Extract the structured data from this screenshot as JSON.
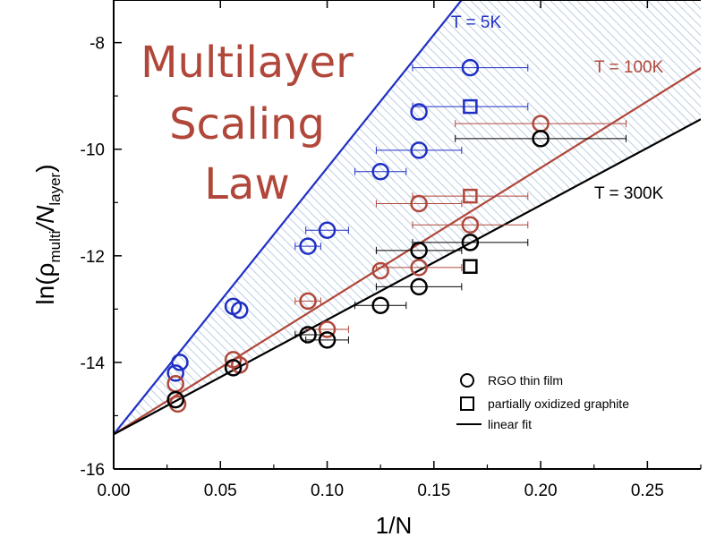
{
  "chart_data": {
    "type": "scatter",
    "title_lines": [
      "Multilayer",
      "Scaling",
      "Law"
    ],
    "xlabel": "1/N",
    "ylabel": {
      "prefix": "ln(ρ",
      "sub1": "multi",
      "mid": "/N",
      "sub2": "layer",
      "suffix": ")"
    },
    "xlim": [
      0.0,
      0.275
    ],
    "ylim": [
      -16,
      -7.2
    ],
    "xticks": [
      0.0,
      0.05,
      0.1,
      0.15,
      0.2,
      0.25
    ],
    "xtick_labels": [
      "0.00",
      "0.05",
      "0.10",
      "0.15",
      "0.20",
      "0.25"
    ],
    "yticks": [
      -16,
      -14,
      -12,
      -10,
      -8
    ],
    "ytick_labels": [
      "-16",
      "-14",
      "-12",
      "-10",
      "-8"
    ],
    "colors": {
      "5K": "#1f2fc4",
      "100K": "#b0473a",
      "300K": "#000000",
      "fill": "#a9c4dd"
    },
    "series": [
      {
        "name": "T = 5K",
        "color_key": "5K",
        "fit": {
          "intercept": -15.35,
          "slope": 50.0
        },
        "circles": [
          {
            "x": 0.029,
            "y": -14.2,
            "xerr": 0.0
          },
          {
            "x": 0.031,
            "y": -14.0,
            "xerr": 0.0
          },
          {
            "x": 0.056,
            "y": -12.95,
            "xerr": 0.0
          },
          {
            "x": 0.059,
            "y": -13.02,
            "xerr": 0.0
          },
          {
            "x": 0.091,
            "y": -11.82,
            "xerr": 0.006
          },
          {
            "x": 0.1,
            "y": -11.52,
            "xerr": 0.01
          },
          {
            "x": 0.125,
            "y": -10.42,
            "xerr": 0.012
          },
          {
            "x": 0.143,
            "y": -10.02,
            "xerr": 0.02
          },
          {
            "x": 0.143,
            "y": -9.3,
            "xerr": 0.0
          },
          {
            "x": 0.167,
            "y": -8.47,
            "xerr": 0.027
          }
        ],
        "squares": [
          {
            "x": 0.167,
            "y": -9.2,
            "xerr": 0.027
          }
        ]
      },
      {
        "name": "T = 100K",
        "color_key": "100K",
        "fit": {
          "intercept": -15.35,
          "slope": 25.0
        },
        "circles": [
          {
            "x": 0.029,
            "y": -14.4,
            "xerr": 0.0
          },
          {
            "x": 0.03,
            "y": -14.78,
            "xerr": 0.0
          },
          {
            "x": 0.056,
            "y": -13.95,
            "xerr": 0.0
          },
          {
            "x": 0.059,
            "y": -14.05,
            "xerr": 0.0
          },
          {
            "x": 0.091,
            "y": -12.85,
            "xerr": 0.006
          },
          {
            "x": 0.1,
            "y": -13.38,
            "xerr": 0.01
          },
          {
            "x": 0.125,
            "y": -12.28,
            "xerr": 0.0
          },
          {
            "x": 0.143,
            "y": -12.22,
            "xerr": 0.02
          },
          {
            "x": 0.143,
            "y": -11.02,
            "xerr": 0.02
          },
          {
            "x": 0.167,
            "y": -11.42,
            "xerr": 0.027
          },
          {
            "x": 0.2,
            "y": -9.52,
            "xerr": 0.04
          }
        ],
        "squares": [
          {
            "x": 0.167,
            "y": -10.88,
            "xerr": 0.027
          }
        ]
      },
      {
        "name": "T = 300K",
        "color_key": "300K",
        "fit": {
          "intercept": -15.35,
          "slope": 21.5
        },
        "circles": [
          {
            "x": 0.029,
            "y": -14.7,
            "xerr": 0.0
          },
          {
            "x": 0.056,
            "y": -14.1,
            "xerr": 0.0
          },
          {
            "x": 0.091,
            "y": -13.48,
            "xerr": 0.006
          },
          {
            "x": 0.1,
            "y": -13.58,
            "xerr": 0.01
          },
          {
            "x": 0.125,
            "y": -12.93,
            "xerr": 0.012
          },
          {
            "x": 0.143,
            "y": -12.58,
            "xerr": 0.02
          },
          {
            "x": 0.143,
            "y": -11.9,
            "xerr": 0.02
          },
          {
            "x": 0.167,
            "y": -11.75,
            "xerr": 0.027
          },
          {
            "x": 0.2,
            "y": -9.8,
            "xerr": 0.04
          }
        ],
        "squares": [
          {
            "x": 0.167,
            "y": -12.2,
            "xerr": 0.0
          }
        ]
      }
    ],
    "legend": [
      {
        "marker": "circle",
        "label": "RGO thin film"
      },
      {
        "marker": "square",
        "label": "partially oxidized graphite"
      },
      {
        "marker": "line",
        "label": "linear fit"
      }
    ],
    "legend_placement": "bottom-right",
    "grid": false
  }
}
